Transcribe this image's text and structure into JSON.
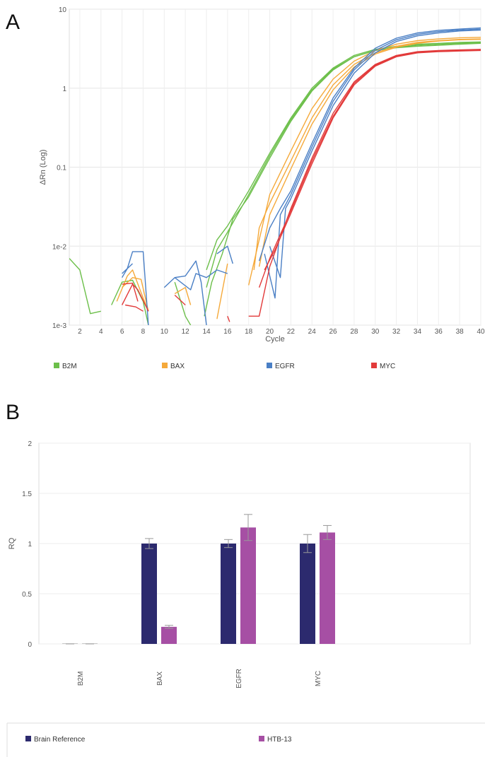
{
  "panels": {
    "a_label": "A",
    "b_label": "B"
  },
  "chart_data": [
    {
      "type": "line",
      "title": "",
      "xlabel": "Cycle",
      "ylabel": "ΔRn (Log)",
      "yscale": "log",
      "xlim": [
        1,
        40
      ],
      "ylim": [
        0.001,
        10
      ],
      "x_ticks": [
        "2",
        "4",
        "6",
        "8",
        "10",
        "12",
        "14",
        "16",
        "18",
        "20",
        "22",
        "24",
        "26",
        "28",
        "30",
        "32",
        "34",
        "36",
        "38",
        "40"
      ],
      "y_ticks": [
        "10",
        "1",
        "0.1",
        "1e-2",
        "1e-3"
      ],
      "grid": true,
      "legend_position": "bottom",
      "series": [
        {
          "name": "B2M",
          "color": "#6cbf4a",
          "curves": [
            [
              [
                1,
                0.007
              ],
              [
                2,
                0.005
              ],
              [
                3,
                0.0014
              ],
              [
                4,
                0.0015
              ]
            ],
            [
              [
                5,
                0.0018
              ],
              [
                6,
                0.0035
              ],
              [
                7,
                0.0037
              ],
              [
                8,
                0.002
              ],
              [
                8.5,
                0.001
              ]
            ],
            [
              [
                11,
                0.0035
              ],
              [
                12,
                0.0013
              ],
              [
                12.5,
                0.001
              ]
            ],
            [
              [
                14,
                0.005
              ],
              [
                15,
                0.012
              ],
              [
                16,
                0.018
              ],
              [
                18,
                0.05
              ],
              [
                20,
                0.15
              ],
              [
                22,
                0.42
              ],
              [
                24,
                1.0
              ],
              [
                26,
                1.8
              ],
              [
                28,
                2.6
              ],
              [
                30,
                3.1
              ],
              [
                32,
                3.4
              ],
              [
                34,
                3.6
              ],
              [
                36,
                3.7
              ],
              [
                38,
                3.8
              ],
              [
                40,
                3.85
              ]
            ],
            [
              [
                14,
                0.003
              ],
              [
                15,
                0.009
              ],
              [
                16,
                0.015
              ],
              [
                18,
                0.045
              ],
              [
                20,
                0.14
              ],
              [
                22,
                0.4
              ],
              [
                24,
                0.95
              ],
              [
                26,
                1.75
              ],
              [
                28,
                2.5
              ],
              [
                30,
                3.0
              ],
              [
                32,
                3.3
              ],
              [
                34,
                3.5
              ],
              [
                36,
                3.6
              ],
              [
                38,
                3.7
              ],
              [
                40,
                3.75
              ]
            ],
            [
              [
                13.8,
                0.0013
              ],
              [
                14.5,
                0.0035
              ],
              [
                15.5,
                0.008
              ],
              [
                16.5,
                0.022
              ],
              [
                18,
                0.042
              ],
              [
                20,
                0.13
              ],
              [
                22,
                0.38
              ],
              [
                24,
                0.92
              ],
              [
                26,
                1.7
              ],
              [
                28,
                2.5
              ],
              [
                30,
                3.0
              ],
              [
                32,
                3.25
              ],
              [
                34,
                3.4
              ],
              [
                36,
                3.5
              ],
              [
                38,
                3.6
              ],
              [
                40,
                3.7
              ]
            ]
          ]
        },
        {
          "name": "BAX",
          "color": "#f5a93a",
          "curves": [
            [
              [
                5.5,
                0.002
              ],
              [
                6.5,
                0.0042
              ],
              [
                7,
                0.005
              ],
              [
                8,
                0.0022
              ],
              [
                8.5,
                0.0015
              ]
            ],
            [
              [
                6,
                0.003
              ],
              [
                7,
                0.004
              ],
              [
                7.8,
                0.0038
              ],
              [
                8.5,
                0.0015
              ]
            ],
            [
              [
                11,
                0.0025
              ],
              [
                12,
                0.003
              ],
              [
                12.5,
                0.0018
              ]
            ],
            [
              [
                15,
                0.0012
              ],
              [
                16,
                0.006
              ]
            ],
            [
              [
                18,
                0.0032
              ],
              [
                19,
                0.012
              ],
              [
                20,
                0.045
              ],
              [
                22,
                0.16
              ],
              [
                24,
                0.55
              ],
              [
                26,
                1.3
              ],
              [
                28,
                2.2
              ],
              [
                30,
                3.0
              ],
              [
                32,
                3.6
              ],
              [
                34,
                4.0
              ],
              [
                36,
                4.2
              ],
              [
                38,
                4.35
              ],
              [
                40,
                4.4
              ]
            ],
            [
              [
                18.5,
                0.005
              ],
              [
                19,
                0.017
              ],
              [
                20,
                0.035
              ],
              [
                22,
                0.12
              ],
              [
                24,
                0.42
              ],
              [
                26,
                1.1
              ],
              [
                28,
                2.0
              ],
              [
                30,
                2.8
              ],
              [
                32,
                3.4
              ],
              [
                34,
                3.8
              ],
              [
                36,
                4.0
              ],
              [
                38,
                4.15
              ],
              [
                40,
                4.2
              ]
            ],
            [
              [
                19,
                0.0055
              ],
              [
                20,
                0.025
              ],
              [
                22,
                0.095
              ],
              [
                24,
                0.35
              ],
              [
                26,
                0.95
              ],
              [
                28,
                1.85
              ],
              [
                30,
                2.7
              ],
              [
                32,
                3.3
              ],
              [
                34,
                3.7
              ],
              [
                36,
                3.95
              ],
              [
                38,
                4.1
              ],
              [
                40,
                4.15
              ]
            ]
          ]
        },
        {
          "name": "EGFR",
          "color": "#4a7fc5",
          "curves": [
            [
              [
                6,
                0.004
              ],
              [
                6.5,
                0.0052
              ],
              [
                7,
                0.0085
              ],
              [
                8,
                0.0085
              ],
              [
                8.5,
                0.001
              ]
            ],
            [
              [
                6,
                0.0045
              ],
              [
                7,
                0.006
              ]
            ],
            [
              [
                10,
                0.003
              ],
              [
                11,
                0.004
              ],
              [
                12,
                0.0042
              ],
              [
                13,
                0.0065
              ],
              [
                13.5,
                0.0035
              ],
              [
                14,
                0.001
              ]
            ],
            [
              [
                11,
                0.004
              ],
              [
                12.5,
                0.0028
              ],
              [
                13,
                0.0045
              ],
              [
                14,
                0.004
              ],
              [
                15,
                0.005
              ],
              [
                16,
                0.0045
              ]
            ],
            [
              [
                15,
                0.008
              ],
              [
                16,
                0.01
              ],
              [
                16.5,
                0.006
              ]
            ],
            [
              [
                19,
                0.0065
              ],
              [
                20,
                0.017
              ],
              [
                21,
                0.03
              ],
              [
                22,
                0.05
              ],
              [
                24,
                0.2
              ],
              [
                26,
                0.75
              ],
              [
                28,
                1.8
              ],
              [
                30,
                3.2
              ],
              [
                32,
                4.3
              ],
              [
                34,
                5.0
              ],
              [
                36,
                5.4
              ],
              [
                38,
                5.6
              ],
              [
                40,
                5.8
              ]
            ],
            [
              [
                19.5,
                0.008
              ],
              [
                20.5,
                0.0022
              ],
              [
                21,
                0.025
              ],
              [
                22,
                0.045
              ],
              [
                24,
                0.18
              ],
              [
                26,
                0.68
              ],
              [
                28,
                1.7
              ],
              [
                30,
                3.0
              ],
              [
                32,
                4.1
              ],
              [
                34,
                4.8
              ],
              [
                36,
                5.2
              ],
              [
                38,
                5.45
              ],
              [
                40,
                5.6
              ]
            ],
            [
              [
                20,
                0.01
              ],
              [
                21,
                0.004
              ],
              [
                21.5,
                0.03
              ],
              [
                22,
                0.04
              ],
              [
                24,
                0.16
              ],
              [
                26,
                0.6
              ],
              [
                28,
                1.55
              ],
              [
                30,
                2.8
              ],
              [
                32,
                3.9
              ],
              [
                34,
                4.6
              ],
              [
                36,
                5.0
              ],
              [
                38,
                5.3
              ],
              [
                40,
                5.45
              ]
            ]
          ]
        },
        {
          "name": "MYC",
          "color": "#e23a3a",
          "curves": [
            [
              [
                6,
                0.0018
              ],
              [
                7,
                0.0033
              ],
              [
                7.5,
                0.0028
              ],
              [
                8.5,
                0.0015
              ]
            ],
            [
              [
                6,
                0.0033
              ],
              [
                7,
                0.0034
              ],
              [
                7.5,
                0.002
              ]
            ],
            [
              [
                6.3,
                0.0018
              ],
              [
                7.3,
                0.0017
              ],
              [
                8,
                0.0015
              ]
            ],
            [
              [
                11,
                0.0024
              ],
              [
                12,
                0.0018
              ]
            ],
            [
              [
                16,
                0.0013
              ],
              [
                16.2,
                0.0011
              ]
            ],
            [
              [
                18,
                0.0013
              ],
              [
                19,
                0.0013
              ],
              [
                20,
                0.0055
              ],
              [
                22,
                0.03
              ],
              [
                24,
                0.13
              ],
              [
                26,
                0.48
              ],
              [
                28,
                1.2
              ],
              [
                30,
                2.0
              ],
              [
                32,
                2.6
              ],
              [
                34,
                2.9
              ],
              [
                36,
                3.0
              ],
              [
                38,
                3.05
              ],
              [
                40,
                3.1
              ]
            ],
            [
              [
                19,
                0.003
              ],
              [
                20,
                0.007
              ],
              [
                22,
                0.028
              ],
              [
                24,
                0.12
              ],
              [
                26,
                0.44
              ],
              [
                28,
                1.15
              ],
              [
                30,
                1.95
              ],
              [
                32,
                2.55
              ],
              [
                34,
                2.85
              ],
              [
                36,
                2.95
              ],
              [
                38,
                3.0
              ],
              [
                40,
                3.05
              ]
            ],
            [
              [
                19.5,
                0.005
              ],
              [
                20.5,
                0.009
              ],
              [
                22,
                0.026
              ],
              [
                24,
                0.11
              ],
              [
                26,
                0.42
              ],
              [
                28,
                1.1
              ],
              [
                30,
                1.9
              ],
              [
                32,
                2.5
              ],
              [
                34,
                2.8
              ],
              [
                36,
                2.9
              ],
              [
                38,
                2.95
              ],
              [
                40,
                3.0
              ]
            ]
          ]
        }
      ]
    },
    {
      "type": "bar",
      "title": "",
      "xlabel": "",
      "ylabel": "RQ",
      "categories": [
        "B2M",
        "BAX",
        "EGFR",
        "MYC"
      ],
      "ylim": [
        0,
        2
      ],
      "y_ticks": [
        "2",
        "1.5",
        "1",
        "0.5",
        "0"
      ],
      "grid": true,
      "legend_position": "bottom",
      "series": [
        {
          "name": "Brain Reference",
          "color": "#2c2a6e",
          "values": [
            0.0,
            1.0,
            1.0,
            1.0
          ],
          "errors": [
            0.0,
            0.05,
            0.04,
            0.09
          ]
        },
        {
          "name": "HTB-13",
          "color": "#a64fa4",
          "values": [
            0.0,
            0.17,
            1.16,
            1.11
          ],
          "errors": [
            0.0,
            0.015,
            0.13,
            0.07
          ]
        }
      ]
    }
  ]
}
